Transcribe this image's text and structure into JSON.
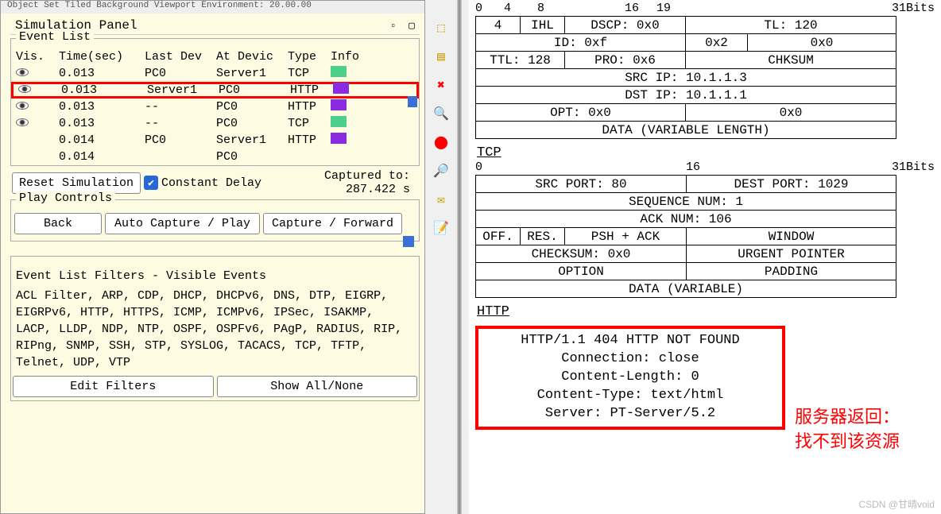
{
  "menubar": "Object  Set Tiled Background  Viewport  Environment: 20.00.00",
  "sim_panel_title": "Simulation Panel",
  "event_list": {
    "legend": "Event List",
    "headers": {
      "vis": "Vis.",
      "time": "Time(sec)",
      "last": "Last Dev",
      "at": "At Devic",
      "type": "Type",
      "info": "Info"
    },
    "rows": [
      {
        "eye": true,
        "time": "0.013",
        "last": "PC0",
        "at": "Server1",
        "type": "TCP",
        "color": "#4bcf8a",
        "hl": false
      },
      {
        "eye": true,
        "time": "0.013",
        "last": "Server1",
        "at": "PC0",
        "type": "HTTP",
        "color": "#8a2be2",
        "hl": true
      },
      {
        "eye": true,
        "time": "0.013",
        "last": "--",
        "at": "PC0",
        "type": "HTTP",
        "color": "#8a2be2",
        "hl": false
      },
      {
        "eye": true,
        "time": "0.013",
        "last": "--",
        "at": "PC0",
        "type": "TCP",
        "color": "#4bcf8a",
        "hl": false
      },
      {
        "eye": false,
        "time": "0.014",
        "last": "PC0",
        "at": "Server1",
        "type": "HTTP",
        "color": "#8a2be2",
        "hl": false
      },
      {
        "eye": false,
        "time": "0.014",
        "last": "",
        "at": "PC0",
        "type": "",
        "color": "",
        "hl": false
      }
    ]
  },
  "controls": {
    "reset": "Reset Simulation",
    "constant_delay": "Constant Delay",
    "captured_label": "Captured to:",
    "captured_value": "287.422 s"
  },
  "play": {
    "legend": "Play Controls",
    "back": "Back",
    "auto": "Auto Capture / Play",
    "fwd": "Capture / Forward"
  },
  "filters": {
    "heading": "Event List Filters - Visible Events",
    "text": "ACL Filter, ARP, CDP, DHCP, DHCPv6, DNS, DTP, EIGRP, EIGRPv6, HTTP, HTTPS, ICMP, ICMPv6, IPSec, ISAKMP, LACP, LLDP, NDP, NTP, OSPF, OSPFv6, PAgP, RADIUS, RIP, RIPng, SNMP, SSH, STP, SYSLOG, TACACS, TCP, TFTP, Telnet, UDP, VTP",
    "edit": "Edit Filters",
    "show": "Show All/None"
  },
  "toolbar": {
    "select": "⬚",
    "list": "▤",
    "del": "✖",
    "zoom": "🔍",
    "rec": "⬤",
    "ins": "🔎",
    "mail": "✉",
    "note": "📝"
  },
  "ip_bits": {
    "b0": "0",
    "b4": "4",
    "b8": "8",
    "b16": "16",
    "b19": "19",
    "b31": "31Bits"
  },
  "ip": {
    "ver": "4",
    "ihl": "IHL",
    "dscp": "DSCP: 0x0",
    "tl": "TL: 120",
    "id": "ID: 0xf",
    "flags": "0x2",
    "fo": "0x0",
    "ttl": "TTL: 128",
    "pro": "PRO: 0x6",
    "chk": "CHKSUM",
    "src": "SRC IP: 10.1.1.3",
    "dst": "DST IP: 10.1.1.1",
    "opt": "OPT: 0x0",
    "pad": "0x0",
    "data": "DATA (VARIABLE LENGTH)"
  },
  "tcp_label": "TCP",
  "tcp_bits": {
    "b0": "0",
    "b16": "16",
    "b31": "31Bits"
  },
  "tcp": {
    "sp": "SRC PORT: 80",
    "dp": "DEST PORT: 1029",
    "seq": "SEQUENCE NUM: 1",
    "ack": "ACK NUM: 106",
    "off": "OFF.",
    "res": "RES.",
    "flg": "PSH + ACK",
    "win": "WINDOW",
    "chk": "CHECKSUM: 0x0",
    "urg": "URGENT POINTER",
    "opt": "OPTION",
    "pad": "PADDING",
    "data": "DATA (VARIABLE)"
  },
  "http_label": "HTTP",
  "http": {
    "l1": "HTTP/1.1 404 HTTP NOT FOUND",
    "l2": "Connection: close",
    "l3": "Content-Length: 0",
    "l4": "Content-Type: text/html",
    "l5": "Server: PT-Server/5.2"
  },
  "annotation": {
    "l1": "服务器返回：",
    "l2": "找不到该资源"
  },
  "watermark": "CSDN @甘晴void"
}
